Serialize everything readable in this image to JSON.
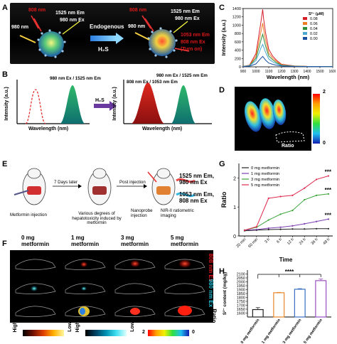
{
  "panel_labels": {
    "A": "A",
    "B": "B",
    "C": "C",
    "D": "D",
    "E": "E",
    "F": "F",
    "G": "G",
    "H": "H"
  },
  "panel_a": {
    "left_980": "980 nm",
    "left_808": "808 nm",
    "left_em": "1525 nm Em",
    "left_ex": "980 nm Ex",
    "endogenous": "Endogenous",
    "h2s": "H₂S",
    "right_808": "808 nm",
    "right_980": "980 nm",
    "right_em1": "1525 nm Em",
    "right_ex1": "980 nm Ex",
    "right_em2": "1053 nm Em",
    "right_ex2": "808 nm Ex",
    "turn_on": "(Turn on)"
  },
  "panel_b": {
    "ylabel": "Intensity (a.u.)",
    "xlabel": "Wavelength (nm)",
    "left_legend": "980 nm Ex / 1525 nm Em",
    "arrow_label": "H₂S",
    "right_legend1": "980 nm Ex / 1525 nm Em",
    "right_legend2": "808 nm Ex / 1053 nm Em"
  },
  "panel_c": {
    "ylabel": "Intensity (a.u.)",
    "xlabel": "Wavelength (nm)",
    "legend_title": "S²⁻ (μM)",
    "ytick_labels": [
      "0",
      "200",
      "400",
      "600",
      "800",
      "1000",
      "1200",
      "1400"
    ],
    "xtick_labels": [
      "900",
      "1000",
      "1100",
      "1200",
      "1300",
      "1400",
      "1500",
      "1600"
    ],
    "colors": {
      "0.08": "#d6202a",
      "0.06": "#f07c22",
      "0.04": "#2f8d3c",
      "0.02": "#4aa8d0",
      "0.00": "#1a4fa0"
    }
  },
  "panel_d": {
    "scale_max": "2",
    "scale_min": "0",
    "roi_label": "Ratio"
  },
  "panel_e": {
    "step1": "Metformin injection",
    "step2_arrow": "7 Days later",
    "step2": "Various degrees of hepatotoxicity induced by metformin",
    "step3_arrow": "Post injection",
    "step3a": "Nanoprobe injection",
    "step3b": "NIR-II ratiometric imaging",
    "out1": "1525 nm Em, 980 nm Ex",
    "out2": "1053 nm Em, 808 nm Ex"
  },
  "panel_f": {
    "col_headers": [
      "0 mg\nmetformin",
      "1 mg\nmetformin",
      "3 mg\nmetformin",
      "5 mg\nmetformin"
    ],
    "row1": "808 nm Ex",
    "row2": "980 nm Ex",
    "row3": "Ratio",
    "scale1_high": "High",
    "scale1_low": "Low",
    "scale2_high": "High",
    "scale2_low": "Low",
    "scale3_high": "2",
    "scale3_low": "0"
  },
  "chart_data": [
    {
      "type": "line",
      "panel": "C",
      "xlabel": "Wavelength (nm)",
      "ylabel": "Intensity (a.u.)",
      "xlim": [
        900,
        1600
      ],
      "ylim": [
        0,
        1400
      ],
      "legend_title": "S²⁻ (μM)",
      "legend_position": "top-right",
      "x": [
        900,
        950,
        1000,
        1020,
        1040,
        1053,
        1060,
        1075,
        1100,
        1130,
        1160,
        1200,
        1300,
        1400,
        1500,
        1600
      ],
      "series": [
        {
          "name": "0.08",
          "color": "#d6202a",
          "values": [
            10,
            40,
            320,
            700,
            1100,
            1380,
            1150,
            820,
            420,
            260,
            160,
            60,
            20,
            10,
            8,
            5
          ]
        },
        {
          "name": "0.06",
          "color": "#f07c22",
          "values": [
            10,
            35,
            250,
            550,
            850,
            1050,
            900,
            640,
            330,
            210,
            130,
            50,
            18,
            10,
            8,
            5
          ]
        },
        {
          "name": "0.04",
          "color": "#2f8d3c",
          "values": [
            8,
            30,
            200,
            420,
            650,
            780,
            690,
            500,
            260,
            170,
            100,
            40,
            15,
            9,
            7,
            5
          ]
        },
        {
          "name": "0.02",
          "color": "#4aa8d0",
          "values": [
            8,
            25,
            150,
            300,
            460,
            540,
            480,
            350,
            190,
            120,
            75,
            30,
            12,
            8,
            6,
            4
          ]
        },
        {
          "name": "0.00",
          "color": "#1a4fa0",
          "values": [
            5,
            15,
            70,
            140,
            210,
            250,
            220,
            160,
            90,
            60,
            40,
            18,
            8,
            5,
            4,
            3
          ]
        }
      ]
    },
    {
      "type": "line",
      "panel": "G",
      "xlabel": "Time",
      "ylabel": "Ratio",
      "ylim": [
        0,
        2.5
      ],
      "yticks": [
        0,
        1,
        2
      ],
      "legend_position": "top-left",
      "categories": [
        "20 min",
        "60 min",
        "3 h",
        "6 h",
        "12 h",
        "24 h",
        "36 h",
        "48 h"
      ],
      "significance": [
        "***",
        "***",
        "***"
      ],
      "series": [
        {
          "name": "0 mg metformin",
          "color": "#222222",
          "values": [
            0.18,
            0.2,
            0.22,
            0.23,
            0.24,
            0.24,
            0.25,
            0.25
          ]
        },
        {
          "name": "1 mg metformin",
          "color": "#7b3fb0",
          "values": [
            0.2,
            0.22,
            0.27,
            0.3,
            0.35,
            0.42,
            0.5,
            0.58
          ]
        },
        {
          "name": "3 mg metformin",
          "color": "#3aa43a",
          "values": [
            0.2,
            0.3,
            0.55,
            0.75,
            0.88,
            1.25,
            1.4,
            1.45
          ]
        },
        {
          "name": "5 mg metformin",
          "color": "#e0294e",
          "values": [
            0.2,
            0.32,
            1.3,
            1.36,
            1.4,
            1.65,
            1.95,
            2.07
          ]
        }
      ]
    },
    {
      "type": "bar",
      "panel": "H",
      "ylabel": "S²⁻ content (mg/kg)",
      "ylim": [
        1550,
        2150
      ],
      "yticks": [
        1600,
        1650,
        1700,
        1750,
        1800,
        1850,
        1900,
        1950,
        2000,
        2050,
        2100
      ],
      "categories": [
        "0 mg metformin",
        "1 mg metformin",
        "3 mg metformin",
        "5 mg metformin"
      ],
      "values": [
        1645,
        1860,
        1905,
        2015
      ],
      "errors": [
        25,
        5,
        8,
        22
      ],
      "colors": [
        "#222222",
        "#e8872a",
        "#3a6fc0",
        "#9a4fc0"
      ],
      "significance": "****"
    }
  ]
}
